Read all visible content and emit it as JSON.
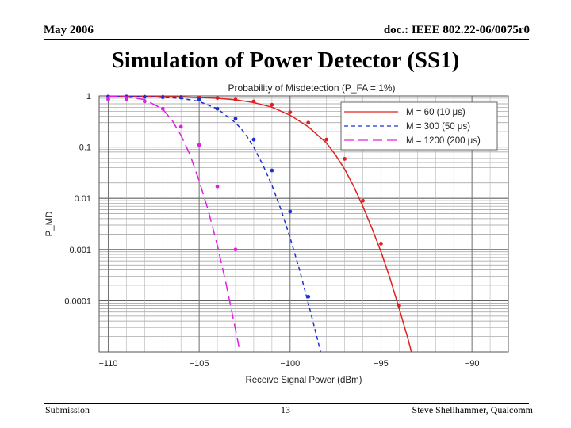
{
  "header": {
    "date": "May 2006",
    "doc_id": "doc.: IEEE 802.22-06/0075r0"
  },
  "title": "Simulation of Power Detector (SS1)",
  "footer": {
    "left": "Submission",
    "page": "13",
    "right": "Steve Shellhammer, Qualcomm"
  },
  "chart_data": {
    "type": "line",
    "title": "Probability of Misdetection (P_FA = 1%)",
    "xlabel": "Receive Signal Power (dBm)",
    "ylabel": "P_MD",
    "y_scale": "log",
    "xlim": [
      -110.5,
      -88
    ],
    "ylim": [
      1e-05,
      1
    ],
    "x_ticks": [
      -110,
      -105,
      -100,
      -95,
      -90
    ],
    "x_tick_labels": [
      "−110",
      "−105",
      "−100",
      "−95",
      "−90"
    ],
    "y_ticks": [
      1,
      0.1,
      0.01,
      0.001,
      0.0001
    ],
    "y_tick_labels": [
      "1",
      "0.1",
      "0.01",
      "0.001",
      "0.0001"
    ],
    "grid": true,
    "legend_position": "top-right",
    "series": [
      {
        "name": "M = 60 (10 μs)",
        "color": "#e02020",
        "dash": "solid",
        "curve": {
          "x": [
            -110,
            -108,
            -106,
            -104,
            -103,
            -102,
            -101,
            -100,
            -99,
            -98,
            -97.5,
            -97,
            -96.5,
            -96,
            -95.5,
            -95,
            -94.5,
            -94,
            -93.5,
            -93,
            -92.9
          ],
          "y": [
            0.99,
            0.98,
            0.96,
            0.9,
            0.84,
            0.74,
            0.6,
            0.42,
            0.25,
            0.12,
            0.07,
            0.037,
            0.017,
            0.007,
            0.0026,
            0.0009,
            0.00027,
            7e-05,
            1.7e-05,
            3.5e-06,
            2.5e-06
          ]
        },
        "points": {
          "x": [
            -110,
            -109,
            -108,
            -107,
            -106,
            -105,
            -104,
            -103,
            -102,
            -101,
            -100,
            -99,
            -98,
            -97,
            -96,
            -95,
            -94
          ],
          "y": [
            0.97,
            0.97,
            0.96,
            0.96,
            0.95,
            0.93,
            0.91,
            0.85,
            0.78,
            0.67,
            0.48,
            0.3,
            0.14,
            0.059,
            0.009,
            0.0013,
            8e-05
          ]
        }
      },
      {
        "name": "M = 300 (50 μs)",
        "color": "#2030d0",
        "dash": "5 4",
        "curve": {
          "x": [
            -110,
            -108,
            -106,
            -105,
            -104,
            -103,
            -102.5,
            -102,
            -101.5,
            -101,
            -100.5,
            -100,
            -99.5,
            -99,
            -98.5,
            -98,
            -97.8
          ],
          "y": [
            0.99,
            0.98,
            0.9,
            0.78,
            0.56,
            0.3,
            0.19,
            0.1,
            0.045,
            0.018,
            0.006,
            0.0017,
            0.00042,
            9e-05,
            1.8e-05,
            3.3e-06,
            2.2e-06
          ]
        },
        "points": {
          "x": [
            -110,
            -109,
            -108,
            -107,
            -106,
            -105,
            -104,
            -103,
            -102,
            -101,
            -100,
            -99
          ],
          "y": [
            0.97,
            0.97,
            0.96,
            0.94,
            0.93,
            0.85,
            0.56,
            0.36,
            0.14,
            0.035,
            0.0055,
            0.00012
          ]
        }
      },
      {
        "name": "M = 1200 (200 μs)",
        "color": "#e020e0",
        "dash": "12 6",
        "curve": {
          "x": [
            -110,
            -109,
            -108,
            -107,
            -106.5,
            -106,
            -105.5,
            -105,
            -104.5,
            -104,
            -103.5,
            -103,
            -102.5,
            -102,
            -101.9
          ],
          "y": [
            0.99,
            0.96,
            0.85,
            0.55,
            0.34,
            0.17,
            0.07,
            0.022,
            0.0058,
            0.0012,
            0.0002,
            2.7e-05,
            3.5e-06,
            3.3e-06,
            2.2e-06
          ]
        },
        "points": {
          "x": [
            -110,
            -109,
            -108,
            -107,
            -106,
            -105,
            -104,
            -103
          ],
          "y": [
            0.86,
            0.86,
            0.78,
            0.56,
            0.25,
            0.11,
            0.017,
            0.001
          ]
        }
      }
    ]
  }
}
